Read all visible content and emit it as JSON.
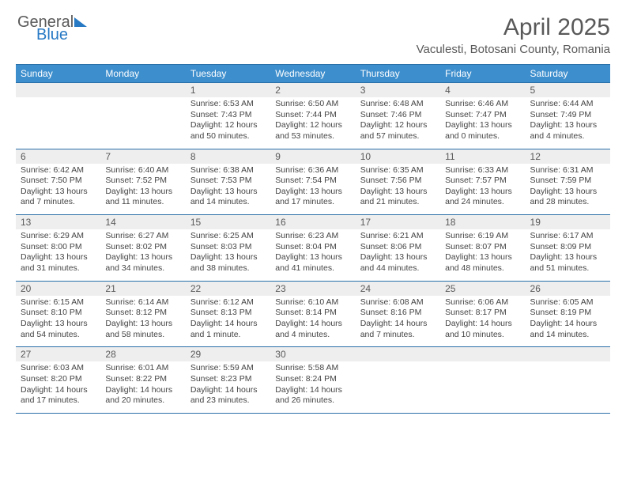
{
  "logo": {
    "part1": "General",
    "part2": "Blue"
  },
  "title": "April 2025",
  "location": "Vaculesti, Botosani County, Romania",
  "colors": {
    "header_bg": "#3d8ecd",
    "header_text": "#ffffff",
    "daynum_bg": "#eeeeee",
    "rule": "#2a6fa8",
    "logo_blue": "#2779c4",
    "text_gray": "#595959"
  },
  "dayNames": [
    "Sunday",
    "Monday",
    "Tuesday",
    "Wednesday",
    "Thursday",
    "Friday",
    "Saturday"
  ],
  "weeks": [
    [
      {
        "n": "",
        "sr": "",
        "ss": "",
        "dl": ""
      },
      {
        "n": "",
        "sr": "",
        "ss": "",
        "dl": ""
      },
      {
        "n": "1",
        "sr": "6:53 AM",
        "ss": "7:43 PM",
        "dl": "12 hours and 50 minutes."
      },
      {
        "n": "2",
        "sr": "6:50 AM",
        "ss": "7:44 PM",
        "dl": "12 hours and 53 minutes."
      },
      {
        "n": "3",
        "sr": "6:48 AM",
        "ss": "7:46 PM",
        "dl": "12 hours and 57 minutes."
      },
      {
        "n": "4",
        "sr": "6:46 AM",
        "ss": "7:47 PM",
        "dl": "13 hours and 0 minutes."
      },
      {
        "n": "5",
        "sr": "6:44 AM",
        "ss": "7:49 PM",
        "dl": "13 hours and 4 minutes."
      }
    ],
    [
      {
        "n": "6",
        "sr": "6:42 AM",
        "ss": "7:50 PM",
        "dl": "13 hours and 7 minutes."
      },
      {
        "n": "7",
        "sr": "6:40 AM",
        "ss": "7:52 PM",
        "dl": "13 hours and 11 minutes."
      },
      {
        "n": "8",
        "sr": "6:38 AM",
        "ss": "7:53 PM",
        "dl": "13 hours and 14 minutes."
      },
      {
        "n": "9",
        "sr": "6:36 AM",
        "ss": "7:54 PM",
        "dl": "13 hours and 17 minutes."
      },
      {
        "n": "10",
        "sr": "6:35 AM",
        "ss": "7:56 PM",
        "dl": "13 hours and 21 minutes."
      },
      {
        "n": "11",
        "sr": "6:33 AM",
        "ss": "7:57 PM",
        "dl": "13 hours and 24 minutes."
      },
      {
        "n": "12",
        "sr": "6:31 AM",
        "ss": "7:59 PM",
        "dl": "13 hours and 28 minutes."
      }
    ],
    [
      {
        "n": "13",
        "sr": "6:29 AM",
        "ss": "8:00 PM",
        "dl": "13 hours and 31 minutes."
      },
      {
        "n": "14",
        "sr": "6:27 AM",
        "ss": "8:02 PM",
        "dl": "13 hours and 34 minutes."
      },
      {
        "n": "15",
        "sr": "6:25 AM",
        "ss": "8:03 PM",
        "dl": "13 hours and 38 minutes."
      },
      {
        "n": "16",
        "sr": "6:23 AM",
        "ss": "8:04 PM",
        "dl": "13 hours and 41 minutes."
      },
      {
        "n": "17",
        "sr": "6:21 AM",
        "ss": "8:06 PM",
        "dl": "13 hours and 44 minutes."
      },
      {
        "n": "18",
        "sr": "6:19 AM",
        "ss": "8:07 PM",
        "dl": "13 hours and 48 minutes."
      },
      {
        "n": "19",
        "sr": "6:17 AM",
        "ss": "8:09 PM",
        "dl": "13 hours and 51 minutes."
      }
    ],
    [
      {
        "n": "20",
        "sr": "6:15 AM",
        "ss": "8:10 PM",
        "dl": "13 hours and 54 minutes."
      },
      {
        "n": "21",
        "sr": "6:14 AM",
        "ss": "8:12 PM",
        "dl": "13 hours and 58 minutes."
      },
      {
        "n": "22",
        "sr": "6:12 AM",
        "ss": "8:13 PM",
        "dl": "14 hours and 1 minute."
      },
      {
        "n": "23",
        "sr": "6:10 AM",
        "ss": "8:14 PM",
        "dl": "14 hours and 4 minutes."
      },
      {
        "n": "24",
        "sr": "6:08 AM",
        "ss": "8:16 PM",
        "dl": "14 hours and 7 minutes."
      },
      {
        "n": "25",
        "sr": "6:06 AM",
        "ss": "8:17 PM",
        "dl": "14 hours and 10 minutes."
      },
      {
        "n": "26",
        "sr": "6:05 AM",
        "ss": "8:19 PM",
        "dl": "14 hours and 14 minutes."
      }
    ],
    [
      {
        "n": "27",
        "sr": "6:03 AM",
        "ss": "8:20 PM",
        "dl": "14 hours and 17 minutes."
      },
      {
        "n": "28",
        "sr": "6:01 AM",
        "ss": "8:22 PM",
        "dl": "14 hours and 20 minutes."
      },
      {
        "n": "29",
        "sr": "5:59 AM",
        "ss": "8:23 PM",
        "dl": "14 hours and 23 minutes."
      },
      {
        "n": "30",
        "sr": "5:58 AM",
        "ss": "8:24 PM",
        "dl": "14 hours and 26 minutes."
      },
      {
        "n": "",
        "sr": "",
        "ss": "",
        "dl": ""
      },
      {
        "n": "",
        "sr": "",
        "ss": "",
        "dl": ""
      },
      {
        "n": "",
        "sr": "",
        "ss": "",
        "dl": ""
      }
    ]
  ],
  "labels": {
    "sunrise": "Sunrise:",
    "sunset": "Sunset:",
    "daylight": "Daylight:"
  }
}
